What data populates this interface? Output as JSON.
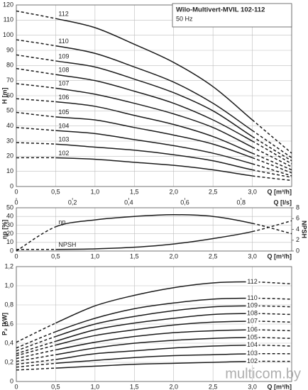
{
  "chart_data": [
    {
      "type": "line",
      "title": "Wilo-Multivert-MVIL 102-112",
      "subtitle": "50 Hz",
      "xlabel": "Q [m³/h]",
      "ylabel": "H [m]",
      "x2label": "Q [l/s]",
      "x": [
        0,
        0.5,
        1,
        1.5,
        2,
        2.5,
        3,
        3.5
      ],
      "xlim": [
        0,
        3.5
      ],
      "xticks": [
        0,
        {
          "value": 0.5,
          "label": "0,5"
        },
        {
          "value": 1,
          "label": "1,0"
        },
        {
          "value": 1.5,
          "label": "1,5"
        },
        {
          "value": 2,
          "label": "2,0"
        },
        {
          "value": 2.5,
          "label": "2,5"
        },
        {
          "value": 3,
          "label": "3,0"
        }
      ],
      "x2lim": [
        0,
        0.98
      ],
      "x2ticks": [
        0,
        {
          "value": 0.2,
          "label": "0,2"
        },
        {
          "value": 0.4,
          "label": "0,4"
        },
        {
          "value": 0.6,
          "label": "0,6"
        },
        {
          "value": 0.8,
          "label": "0,8"
        }
      ],
      "ylim": [
        0,
        120
      ],
      "yticks": [
        0,
        10,
        20,
        30,
        40,
        50,
        60,
        70,
        80,
        90,
        100,
        110,
        120
      ],
      "grid": true,
      "series": [
        {
          "name": "112",
          "color": "#1a1a1a",
          "values": [
            116,
            111,
            105,
            94,
            82,
            66,
            44,
            22
          ]
        },
        {
          "name": "110",
          "color": "#1a1a1a",
          "values": [
            97,
            93,
            88,
            79,
            69,
            55,
            37,
            19
          ]
        },
        {
          "name": "109",
          "color": "#1a1a1a",
          "values": [
            87,
            83,
            79,
            71,
            62,
            50,
            33,
            17
          ]
        },
        {
          "name": "108",
          "color": "#1a1a1a",
          "values": [
            78,
            74,
            70,
            63,
            55,
            44,
            30,
            15
          ]
        },
        {
          "name": "107",
          "color": "#1a1a1a",
          "values": [
            68,
            65,
            61,
            55,
            48,
            39,
            26,
            13
          ]
        },
        {
          "name": "106",
          "color": "#1a1a1a",
          "values": [
            58,
            56,
            53,
            47,
            41,
            33,
            22,
            11
          ]
        },
        {
          "name": "105",
          "color": "#1a1a1a",
          "values": [
            49,
            46,
            44,
            39,
            34,
            28,
            19,
            9
          ]
        },
        {
          "name": "104",
          "color": "#1a1a1a",
          "values": [
            39,
            37,
            35,
            31,
            27,
            22,
            15,
            7
          ]
        },
        {
          "name": "103",
          "color": "#1a1a1a",
          "values": [
            29,
            28,
            26,
            24,
            21,
            17,
            11,
            6
          ]
        },
        {
          "name": "102",
          "color": "#1a1a1a",
          "values": [
            19,
            19,
            18,
            16,
            14,
            11,
            7,
            4
          ]
        }
      ]
    },
    {
      "type": "line",
      "xlabel": "Q [m³/h]",
      "ylabel": "ηp [%]",
      "y2label": "NPSH",
      "x": [
        0,
        0.5,
        1,
        1.5,
        2,
        2.5,
        3,
        3.5
      ],
      "xlim": [
        0,
        3.5
      ],
      "xticks": [
        0,
        {
          "value": 0.5,
          "label": "0,5"
        },
        {
          "value": 1,
          "label": "1,0"
        },
        {
          "value": 1.5,
          "label": "1,5"
        },
        {
          "value": 2,
          "label": "2,0"
        },
        {
          "value": 2.5,
          "label": "2,5"
        },
        {
          "value": 3,
          "label": "3,0"
        }
      ],
      "ylim": [
        0,
        50
      ],
      "yticks": [
        0,
        10,
        20,
        30,
        40,
        50
      ],
      "y2lim": [
        0,
        8
      ],
      "y2ticks": [
        0,
        2,
        4,
        6,
        8
      ],
      "grid": true,
      "series": [
        {
          "name": "ηp",
          "color": "#1a1a1a",
          "values": [
            0,
            28,
            36,
            40,
            42,
            40,
            32,
            20
          ]
        },
        {
          "name": "NPSH",
          "color": "#1a1a1a",
          "axis": "y2",
          "values": [
            0.3,
            0.3,
            0.4,
            0.7,
            1.3,
            2.3,
            3.6,
            5.6
          ]
        }
      ]
    },
    {
      "type": "line",
      "xlabel": "Q [m³/h]",
      "ylabel": "P₂ [kW]",
      "x": [
        0,
        0.5,
        1,
        1.5,
        2,
        2.5,
        3,
        3.5
      ],
      "xlim": [
        0,
        3.5
      ],
      "xticks": [
        0,
        {
          "value": 0.5,
          "label": "0,5"
        },
        {
          "value": 1,
          "label": "1,0"
        },
        {
          "value": 1.5,
          "label": "1,5"
        },
        {
          "value": 2,
          "label": "2,0"
        },
        {
          "value": 2.5,
          "label": "2,5"
        },
        {
          "value": 3,
          "label": "3,0"
        }
      ],
      "ylim": [
        0,
        1.2
      ],
      "yticks": [
        0,
        {
          "value": 0.2,
          "label": "0,2"
        },
        {
          "value": 0.4,
          "label": "0,4"
        },
        {
          "value": 0.6,
          "label": "0,6"
        },
        {
          "value": 0.8,
          "label": "0,8"
        },
        {
          "value": 1,
          "label": "1,0"
        },
        {
          "value": 1.2,
          "label": "1,2"
        }
      ],
      "grid": true,
      "series": [
        {
          "name": "112",
          "color": "#1a1a1a",
          "values": [
            0.41,
            0.61,
            0.79,
            0.9,
            0.98,
            1.03,
            1.04,
            1.02
          ]
        },
        {
          "name": "110",
          "color": "#1a1a1a",
          "values": [
            0.35,
            0.52,
            0.66,
            0.76,
            0.82,
            0.86,
            0.87,
            0.86
          ]
        },
        {
          "name": "109",
          "color": "#1a1a1a",
          "values": [
            0.32,
            0.47,
            0.6,
            0.68,
            0.74,
            0.78,
            0.79,
            0.78
          ]
        },
        {
          "name": "108",
          "color": "#1a1a1a",
          "values": [
            0.29,
            0.42,
            0.54,
            0.61,
            0.66,
            0.7,
            0.71,
            0.7
          ]
        },
        {
          "name": "107",
          "color": "#1a1a1a",
          "values": [
            0.27,
            0.38,
            0.48,
            0.54,
            0.59,
            0.62,
            0.63,
            0.62
          ]
        },
        {
          "name": "106",
          "color": "#1a1a1a",
          "values": [
            0.24,
            0.33,
            0.41,
            0.47,
            0.51,
            0.53,
            0.54,
            0.53
          ]
        },
        {
          "name": "105",
          "color": "#1a1a1a",
          "values": [
            0.21,
            0.28,
            0.35,
            0.4,
            0.43,
            0.45,
            0.46,
            0.45
          ]
        },
        {
          "name": "104",
          "color": "#1a1a1a",
          "values": [
            0.18,
            0.23,
            0.29,
            0.32,
            0.35,
            0.37,
            0.38,
            0.37
          ]
        },
        {
          "name": "103",
          "color": "#1a1a1a",
          "values": [
            0.15,
            0.19,
            0.22,
            0.25,
            0.27,
            0.28,
            0.29,
            0.29
          ]
        },
        {
          "name": "102",
          "color": "#1a1a1a",
          "values": [
            0.12,
            0.14,
            0.16,
            0.18,
            0.19,
            0.2,
            0.21,
            0.21
          ]
        }
      ]
    }
  ],
  "watermark": "multicom.by"
}
